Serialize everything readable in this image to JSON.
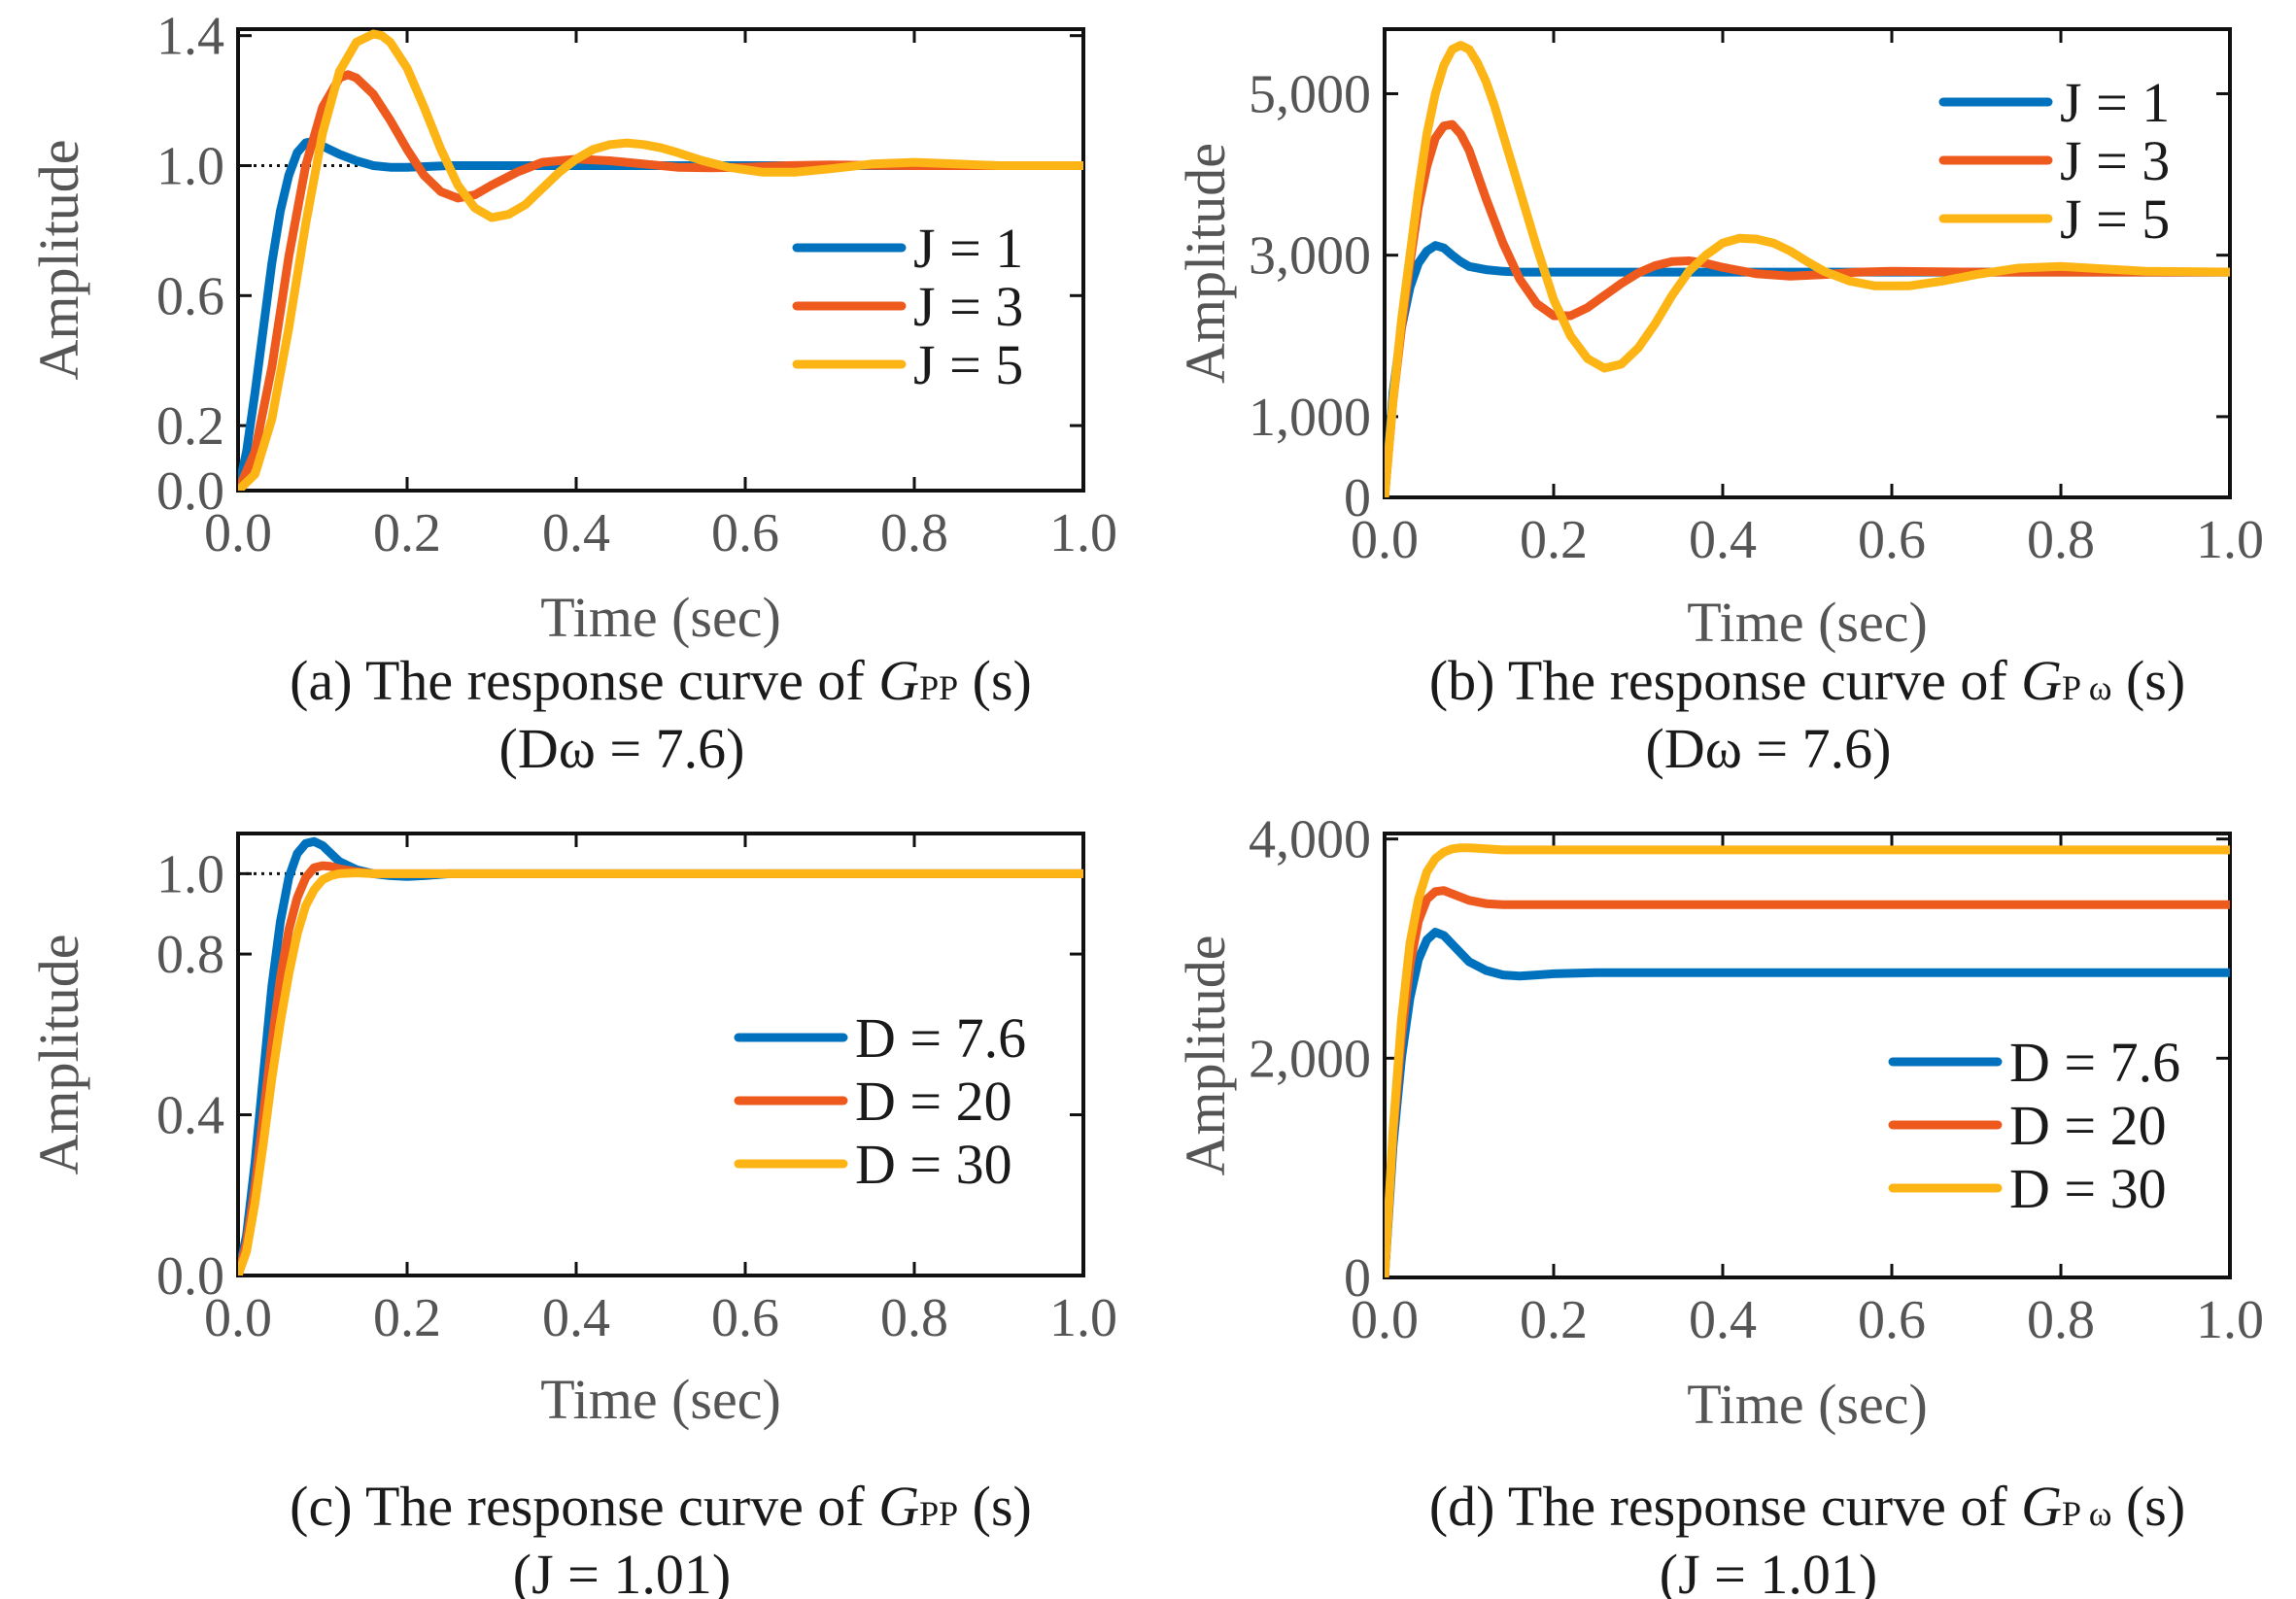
{
  "colors": {
    "blue": "#0072BD",
    "orange": "#EE5A1E",
    "yellow": "#FDB515"
  },
  "chart_data": [
    {
      "id": "a",
      "type": "line",
      "caption_main": "(a) The response curve of ",
      "caption_G": "G",
      "caption_sub": "PP",
      "caption_end": " (s)",
      "caption_line2": "(Dω = 7.6)",
      "xlabel": "Time (sec)",
      "ylabel": "Amplitude",
      "xlim": [
        0,
        1
      ],
      "ylim": [
        0,
        1.42
      ],
      "xticks": [
        "0.0",
        "0.2",
        "0.4",
        "0.6",
        "0.8",
        "1.0"
      ],
      "yticks": [
        {
          "v": 0.0,
          "label": "0.0"
        },
        {
          "v": 0.2,
          "label": "0.2"
        },
        {
          "v": 0.6,
          "label": "0.6"
        },
        {
          "v": 1.0,
          "label": "1.0"
        },
        {
          "v": 1.4,
          "label": "1.4"
        }
      ],
      "ref_line": {
        "y": 1.0,
        "x_to": 0.15
      },
      "legend_position": "middle-right",
      "series": [
        {
          "name": "J = 1",
          "color": "#0072BD",
          "final": 1.0,
          "x": [
            0,
            0.01,
            0.02,
            0.03,
            0.04,
            0.05,
            0.06,
            0.07,
            0.08,
            0.09,
            0.1,
            0.12,
            0.14,
            0.16,
            0.18,
            0.2,
            0.25,
            0.3,
            0.4,
            0.5,
            0.6,
            0.8,
            1.0
          ],
          "y": [
            0,
            0.12,
            0.3,
            0.5,
            0.7,
            0.86,
            0.97,
            1.04,
            1.07,
            1.075,
            1.06,
            1.035,
            1.015,
            1.0,
            0.995,
            0.995,
            1.0,
            1.0,
            1.0,
            1.0,
            1.0,
            1.0,
            1.0
          ]
        },
        {
          "name": "J = 3",
          "color": "#EE5A1E",
          "final": 1.0,
          "x": [
            0,
            0.02,
            0.04,
            0.06,
            0.08,
            0.1,
            0.12,
            0.13,
            0.14,
            0.16,
            0.18,
            0.2,
            0.22,
            0.24,
            0.26,
            0.28,
            0.3,
            0.33,
            0.36,
            0.4,
            0.44,
            0.48,
            0.52,
            0.56,
            0.6,
            0.65,
            0.7,
            0.8,
            0.9,
            1.0
          ],
          "y": [
            0,
            0.12,
            0.38,
            0.72,
            1.0,
            1.18,
            1.27,
            1.28,
            1.27,
            1.22,
            1.14,
            1.05,
            0.97,
            0.92,
            0.9,
            0.91,
            0.94,
            0.98,
            1.01,
            1.02,
            1.015,
            1.005,
            0.995,
            0.993,
            0.995,
            1.0,
            1.002,
            1.0,
            1.0,
            1.0
          ]
        },
        {
          "name": "J = 5",
          "color": "#FDB515",
          "final": 1.0,
          "x": [
            0,
            0.02,
            0.04,
            0.06,
            0.08,
            0.1,
            0.12,
            0.14,
            0.16,
            0.17,
            0.18,
            0.2,
            0.22,
            0.24,
            0.26,
            0.28,
            0.3,
            0.32,
            0.34,
            0.36,
            0.38,
            0.4,
            0.42,
            0.44,
            0.46,
            0.48,
            0.5,
            0.52,
            0.55,
            0.58,
            0.62,
            0.66,
            0.7,
            0.75,
            0.8,
            0.85,
            0.9,
            0.95,
            1.0
          ],
          "y": [
            0,
            0.05,
            0.22,
            0.5,
            0.82,
            1.1,
            1.29,
            1.38,
            1.405,
            1.4,
            1.38,
            1.3,
            1.18,
            1.05,
            0.94,
            0.87,
            0.84,
            0.85,
            0.88,
            0.93,
            0.98,
            1.02,
            1.05,
            1.065,
            1.07,
            1.065,
            1.055,
            1.04,
            1.015,
            0.995,
            0.98,
            0.98,
            0.99,
            1.005,
            1.01,
            1.005,
            1.0,
            1.0,
            1.0
          ]
        }
      ]
    },
    {
      "id": "b",
      "type": "line",
      "caption_main": "(b) The response curve of ",
      "caption_G": "G",
      "caption_sub": "P ω",
      "caption_end": " (s)",
      "caption_line2": "(Dω = 7.6)",
      "xlabel": "Time (sec)",
      "ylabel": "Amplitude",
      "xlim": [
        0,
        1
      ],
      "ylim": [
        0,
        5800
      ],
      "xticks": [
        "0.0",
        "0.2",
        "0.4",
        "0.6",
        "0.8",
        "1.0"
      ],
      "yticks": [
        {
          "v": 0,
          "label": "0"
        },
        {
          "v": 1000,
          "label": "1,000"
        },
        {
          "v": 3000,
          "label": "3,000"
        },
        {
          "v": 5000,
          "label": "5,000"
        }
      ],
      "legend_position": "top-right",
      "series": [
        {
          "name": "J = 1",
          "color": "#0072BD",
          "x": [
            0,
            0.01,
            0.02,
            0.03,
            0.04,
            0.05,
            0.06,
            0.07,
            0.08,
            0.09,
            0.1,
            0.12,
            0.14,
            0.16,
            0.18,
            0.2,
            0.3,
            0.5,
            1.0
          ],
          "y": [
            0,
            1300,
            2100,
            2600,
            2900,
            3050,
            3120,
            3090,
            3000,
            2920,
            2860,
            2820,
            2800,
            2790,
            2790,
            2790,
            2790,
            2790,
            2790
          ]
        },
        {
          "name": "J = 3",
          "color": "#EE5A1E",
          "x": [
            0,
            0.01,
            0.02,
            0.03,
            0.04,
            0.05,
            0.06,
            0.07,
            0.08,
            0.09,
            0.1,
            0.11,
            0.12,
            0.14,
            0.16,
            0.18,
            0.2,
            0.22,
            0.24,
            0.26,
            0.28,
            0.3,
            0.32,
            0.34,
            0.36,
            0.38,
            0.4,
            0.44,
            0.48,
            0.52,
            0.56,
            0.6,
            0.7,
            0.8,
            1.0
          ],
          "y": [
            0,
            1200,
            2100,
            2900,
            3600,
            4100,
            4450,
            4600,
            4620,
            4500,
            4300,
            4000,
            3700,
            3150,
            2700,
            2400,
            2250,
            2250,
            2350,
            2500,
            2650,
            2780,
            2870,
            2920,
            2930,
            2900,
            2850,
            2770,
            2740,
            2760,
            2790,
            2800,
            2790,
            2790,
            2790
          ]
        },
        {
          "name": "J = 5",
          "color": "#FDB515",
          "x": [
            0,
            0.01,
            0.02,
            0.03,
            0.04,
            0.05,
            0.06,
            0.07,
            0.08,
            0.09,
            0.1,
            0.11,
            0.12,
            0.13,
            0.14,
            0.16,
            0.18,
            0.2,
            0.22,
            0.24,
            0.26,
            0.28,
            0.3,
            0.32,
            0.34,
            0.36,
            0.38,
            0.4,
            0.42,
            0.44,
            0.46,
            0.48,
            0.5,
            0.52,
            0.55,
            0.58,
            0.62,
            0.66,
            0.7,
            0.75,
            0.8,
            0.85,
            0.9,
            1.0
          ],
          "y": [
            0,
            1200,
            2200,
            3000,
            3800,
            4500,
            5000,
            5350,
            5550,
            5600,
            5550,
            5380,
            5150,
            4850,
            4500,
            3800,
            3100,
            2450,
            2000,
            1720,
            1600,
            1650,
            1850,
            2150,
            2500,
            2800,
            3000,
            3150,
            3210,
            3200,
            3150,
            3050,
            2920,
            2800,
            2680,
            2620,
            2620,
            2680,
            2760,
            2840,
            2860,
            2830,
            2800,
            2790
          ]
        }
      ]
    },
    {
      "id": "c",
      "type": "line",
      "caption_main": "(c) The response curve of ",
      "caption_G": "G",
      "caption_sub": "PP",
      "caption_end": " (s)",
      "caption_line2": "(J = 1.01)",
      "xlabel": "Time (sec)",
      "ylabel": "Amplitude",
      "xlim": [
        0,
        1
      ],
      "ylim": [
        0,
        1.1
      ],
      "xticks": [
        "0.0",
        "0.2",
        "0.4",
        "0.6",
        "0.8",
        "1.0"
      ],
      "yticks": [
        {
          "v": 0.0,
          "label": "0.0"
        },
        {
          "v": 0.4,
          "label": "0.4"
        },
        {
          "v": 0.8,
          "label": "0.8"
        },
        {
          "v": 1.0,
          "label": "1.0"
        }
      ],
      "ref_line": {
        "y": 1.0,
        "x_to": 0.1
      },
      "legend_position": "middle-right",
      "series": [
        {
          "name": "D = 7.6",
          "color": "#0072BD",
          "x": [
            0,
            0.01,
            0.02,
            0.03,
            0.04,
            0.05,
            0.06,
            0.07,
            0.08,
            0.09,
            0.1,
            0.11,
            0.12,
            0.14,
            0.16,
            0.18,
            0.2,
            0.22,
            0.25,
            0.3,
            0.5,
            1.0
          ],
          "y": [
            0,
            0.1,
            0.28,
            0.5,
            0.72,
            0.88,
            0.99,
            1.05,
            1.075,
            1.08,
            1.07,
            1.05,
            1.03,
            1.01,
            1.0,
            0.995,
            0.993,
            0.995,
            1.0,
            1.0,
            1.0,
            1.0
          ]
        },
        {
          "name": "D = 20",
          "color": "#EE5A1E",
          "x": [
            0,
            0.01,
            0.02,
            0.03,
            0.04,
            0.05,
            0.06,
            0.07,
            0.08,
            0.09,
            0.1,
            0.11,
            0.12,
            0.14,
            0.16,
            0.2,
            0.3,
            1.0
          ],
          "y": [
            0,
            0.08,
            0.22,
            0.4,
            0.58,
            0.74,
            0.86,
            0.94,
            0.99,
            1.015,
            1.02,
            1.018,
            1.012,
            1.005,
            1.0,
            1.0,
            1.0,
            1.0
          ]
        },
        {
          "name": "D = 30",
          "color": "#FDB515",
          "x": [
            0,
            0.01,
            0.02,
            0.03,
            0.04,
            0.05,
            0.06,
            0.07,
            0.08,
            0.09,
            0.1,
            0.11,
            0.12,
            0.14,
            0.16,
            0.2,
            0.3,
            1.0
          ],
          "y": [
            0,
            0.06,
            0.18,
            0.33,
            0.49,
            0.63,
            0.75,
            0.85,
            0.92,
            0.96,
            0.985,
            0.995,
            1.0,
            1.002,
            1.0,
            1.0,
            1.0,
            1.0
          ]
        }
      ]
    },
    {
      "id": "d",
      "type": "line",
      "caption_main": "(d) The response curve of ",
      "caption_G": "G",
      "caption_sub": "P ω",
      "caption_end": " (s)",
      "caption_line2": "(J = 1.01)",
      "xlabel": "Time (sec)",
      "ylabel": "Amplitude",
      "xlim": [
        0,
        1
      ],
      "ylim": [
        0,
        4050
      ],
      "xticks": [
        "0.0",
        "0.2",
        "0.4",
        "0.6",
        "0.8",
        "1.0"
      ],
      "yticks": [
        {
          "v": 0,
          "label": "0"
        },
        {
          "v": 2000,
          "label": "2,000"
        },
        {
          "v": 4000,
          "label": "4,000"
        }
      ],
      "legend_position": "middle-right",
      "series": [
        {
          "name": "D = 7.6",
          "color": "#0072BD",
          "x": [
            0,
            0.01,
            0.02,
            0.03,
            0.04,
            0.05,
            0.06,
            0.07,
            0.08,
            0.09,
            0.1,
            0.12,
            0.14,
            0.16,
            0.18,
            0.2,
            0.25,
            0.3,
            1.0
          ],
          "y": [
            0,
            1200,
            2000,
            2550,
            2900,
            3080,
            3150,
            3120,
            3040,
            2960,
            2880,
            2800,
            2760,
            2750,
            2760,
            2770,
            2780,
            2780,
            2780
          ]
        },
        {
          "name": "D = 20",
          "color": "#EE5A1E",
          "x": [
            0,
            0.01,
            0.02,
            0.03,
            0.04,
            0.05,
            0.06,
            0.07,
            0.08,
            0.09,
            0.1,
            0.12,
            0.14,
            0.16,
            0.18,
            0.2,
            0.3,
            1.0
          ],
          "y": [
            0,
            1300,
            2200,
            2850,
            3250,
            3450,
            3520,
            3530,
            3500,
            3470,
            3440,
            3410,
            3400,
            3400,
            3400,
            3400,
            3400,
            3400
          ]
        },
        {
          "name": "D = 30",
          "color": "#FDB515",
          "x": [
            0,
            0.01,
            0.02,
            0.03,
            0.04,
            0.05,
            0.06,
            0.07,
            0.08,
            0.09,
            0.1,
            0.12,
            0.14,
            0.16,
            0.2,
            0.3,
            1.0
          ],
          "y": [
            0,
            1350,
            2350,
            3050,
            3450,
            3700,
            3820,
            3880,
            3910,
            3920,
            3920,
            3910,
            3900,
            3900,
            3900,
            3900,
            3900
          ]
        }
      ]
    }
  ]
}
